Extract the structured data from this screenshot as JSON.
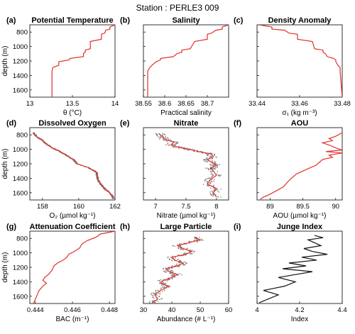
{
  "figure": {
    "title": "Station : PERLE3 009",
    "ylabel": "depth (m)",
    "yticks": [
      800,
      1000,
      1200,
      1400,
      1600
    ],
    "ylim": [
      700,
      1700
    ]
  },
  "chart_data": [
    {
      "type": "line",
      "letter": "(a)",
      "title": "Potential Temperature",
      "xlabel": "θ (°C)",
      "xlim": [
        13,
        14
      ],
      "xticks": [
        13,
        13.5,
        14
      ],
      "xticklabels": [
        "13",
        "13.5",
        "14"
      ],
      "line_color": "#e0302a",
      "x": [
        14.0,
        13.94,
        13.94,
        13.89,
        13.88,
        13.84,
        13.84,
        13.71,
        13.71,
        13.65,
        13.65,
        13.63,
        13.63,
        13.47,
        13.46,
        13.34,
        13.34,
        13.27,
        13.26,
        13.26
      ],
      "y": [
        700,
        730,
        760,
        775,
        815,
        830,
        900,
        930,
        1030,
        1050,
        1080,
        1095,
        1140,
        1165,
        1185,
        1210,
        1260,
        1290,
        1340,
        1700
      ]
    },
    {
      "type": "line",
      "letter": "(b)",
      "title": "Salinity",
      "xlabel": "Practical salinity",
      "xlim": [
        38.55,
        38.75
      ],
      "xticks": [
        38.55,
        38.6,
        38.65,
        38.7
      ],
      "xticklabels": [
        "38.55",
        "38.6",
        "38.65",
        "38.7"
      ],
      "line_color": "#e0302a",
      "x": [
        38.75,
        38.735,
        38.735,
        38.72,
        38.71,
        38.7,
        38.7,
        38.67,
        38.66,
        38.64,
        38.64,
        38.63,
        38.62,
        38.59,
        38.59,
        38.58,
        38.57,
        38.565,
        38.56,
        38.56
      ],
      "y": [
        700,
        730,
        760,
        775,
        815,
        830,
        900,
        930,
        1030,
        1050,
        1080,
        1095,
        1140,
        1165,
        1185,
        1210,
        1260,
        1290,
        1340,
        1700
      ]
    },
    {
      "type": "line",
      "letter": "(c)",
      "title": "Density Anomaly",
      "xlabel": "σ₁ (kg m⁻³)",
      "xlim": [
        33.44,
        33.48
      ],
      "xticks": [
        33.44,
        33.46,
        33.48
      ],
      "xticklabels": [
        "33.44",
        "33.46",
        "33.48"
      ],
      "line_color": "#e0302a",
      "x": [
        33.441,
        33.447,
        33.447,
        33.453,
        33.455,
        33.459,
        33.459,
        33.466,
        33.467,
        33.471,
        33.471,
        33.472,
        33.473,
        33.476,
        33.477,
        33.477,
        33.478,
        33.479,
        33.479,
        33.48
      ],
      "y": [
        700,
        730,
        760,
        775,
        815,
        830,
        900,
        930,
        1030,
        1050,
        1080,
        1095,
        1140,
        1165,
        1185,
        1210,
        1260,
        1290,
        1340,
        1700
      ]
    },
    {
      "type": "line",
      "letter": "(d)",
      "title": "Dissolved Oxygen",
      "xlabel": "O₂ (µmol kg⁻¹)",
      "xlim": [
        157.3,
        162
      ],
      "xticks": [
        158,
        160,
        162
      ],
      "xticklabels": [
        "158",
        "160",
        "162"
      ],
      "line_color": "#e0302a",
      "scatter_color": "#777777",
      "x": [
        157.5,
        157.6,
        157.7,
        157.9,
        158.1,
        158.3,
        158.5,
        158.7,
        158.9,
        159.1,
        159.3,
        159.5,
        159.7,
        159.8,
        159.9,
        160.5,
        160.8,
        161.0,
        161.0,
        161.05,
        161.1,
        161.2,
        161.35,
        161.5,
        161.7,
        161.85,
        161.9
      ],
      "y": [
        770,
        800,
        830,
        860,
        900,
        940,
        975,
        1000,
        1020,
        1050,
        1080,
        1110,
        1140,
        1170,
        1200,
        1250,
        1290,
        1320,
        1360,
        1400,
        1440,
        1480,
        1520,
        1560,
        1600,
        1640,
        1680
      ]
    },
    {
      "type": "line",
      "letter": "(e)",
      "title": "Nitrate",
      "xlabel": "Nitrate (µmol kg⁻¹)",
      "xlim": [
        6.8,
        8.2
      ],
      "xticks": [
        7,
        7.5,
        8
      ],
      "xticklabels": [
        "7",
        "7.5",
        "8"
      ],
      "line_color": "#e0302a",
      "scatter_color": "#777777",
      "x": [
        7.05,
        7.1,
        7.15,
        7.3,
        7.25,
        7.4,
        7.55,
        7.7,
        7.9,
        7.95,
        7.85,
        7.92,
        8.0,
        7.9,
        7.95,
        8.0,
        7.9,
        7.85,
        8.0,
        7.95,
        8.0
      ],
      "y": [
        780,
        820,
        860,
        900,
        940,
        975,
        1000,
        1030,
        1060,
        1100,
        1140,
        1180,
        1220,
        1260,
        1300,
        1360,
        1420,
        1480,
        1540,
        1600,
        1660
      ]
    },
    {
      "type": "line",
      "letter": "(f)",
      "title": "AOU",
      "xlabel": "AOU (µmol kg⁻¹)",
      "xlim": [
        88.8,
        90.1
      ],
      "xticks": [
        89,
        89.5,
        90
      ],
      "xticklabels": [
        "89",
        "89.5",
        "90"
      ],
      "line_color": "#e0302a",
      "x": [
        90.1,
        90.0,
        89.9,
        89.95,
        89.8,
        89.9,
        90.0,
        90.1,
        89.85,
        90.1,
        89.9,
        89.95,
        89.8,
        89.75,
        89.7,
        89.6,
        89.5,
        89.4,
        89.35,
        89.3,
        89.25,
        89.2,
        89.1,
        89.0,
        88.9,
        88.85
      ],
      "y": [
        770,
        820,
        850,
        880,
        910,
        940,
        980,
        1010,
        1030,
        1050,
        1080,
        1110,
        1140,
        1180,
        1220,
        1260,
        1300,
        1340,
        1380,
        1420,
        1470,
        1520,
        1570,
        1620,
        1660,
        1690
      ]
    },
    {
      "type": "line",
      "letter": "(g)",
      "title": "Attenuation Coefficient",
      "xlabel": "BAC (m⁻¹)",
      "xlim": [
        0.4437,
        0.4483
      ],
      "xticks": [
        0.444,
        0.446,
        0.448
      ],
      "xticklabels": [
        "0.444",
        "0.446",
        "0.448"
      ],
      "line_color": "#e0302a",
      "x": [
        0.4483,
        0.4475,
        0.4473,
        0.4468,
        0.4465,
        0.4464,
        0.4461,
        0.4458,
        0.4457,
        0.4455,
        0.4452,
        0.445,
        0.4449,
        0.4447,
        0.4445,
        0.4444,
        0.4446,
        0.4444,
        0.4442,
        0.4441,
        0.444,
        0.4439
      ],
      "y": [
        700,
        740,
        780,
        830,
        880,
        930,
        980,
        1020,
        1060,
        1100,
        1140,
        1180,
        1240,
        1300,
        1340,
        1380,
        1420,
        1460,
        1520,
        1580,
        1640,
        1700
      ]
    },
    {
      "type": "line",
      "letter": "(h)",
      "title": "Large Particle",
      "xlabel": "Abundance (# L⁻¹)",
      "xlim": [
        30,
        60
      ],
      "xticks": [
        30,
        40,
        50,
        60
      ],
      "xticklabels": [
        "30",
        "40",
        "50",
        "60"
      ],
      "line_color": "#e0302a",
      "scatter_color": "#777777",
      "x": [
        48,
        50,
        46,
        42,
        44,
        47,
        45,
        40,
        41,
        44,
        42,
        38,
        39,
        42,
        40,
        37,
        36,
        39,
        36,
        34,
        35,
        33
      ],
      "y": [
        780,
        820,
        860,
        900,
        940,
        980,
        1020,
        1060,
        1100,
        1140,
        1180,
        1220,
        1260,
        1300,
        1340,
        1380,
        1420,
        1460,
        1520,
        1580,
        1640,
        1690
      ]
    },
    {
      "type": "line",
      "letter": "(i)",
      "title": "Junge Index",
      "xlabel": "Index",
      "xlim": [
        4,
        4.4
      ],
      "xticks": [
        4,
        4.2,
        4.4
      ],
      "xticklabels": [
        "4",
        "4.2",
        "4.4"
      ],
      "line_color": "#111111",
      "x": [
        4.27,
        4.31,
        4.24,
        4.27,
        4.3,
        4.22,
        4.26,
        4.33,
        4.21,
        4.28,
        4.15,
        4.23,
        4.12,
        4.26,
        4.18,
        4.1,
        4.18,
        4.13,
        4.03,
        4.1,
        4.05,
        4.01
      ],
      "y": [
        760,
        790,
        820,
        860,
        900,
        940,
        980,
        1020,
        1060,
        1100,
        1140,
        1180,
        1220,
        1260,
        1300,
        1340,
        1400,
        1460,
        1520,
        1580,
        1640,
        1690
      ]
    }
  ]
}
